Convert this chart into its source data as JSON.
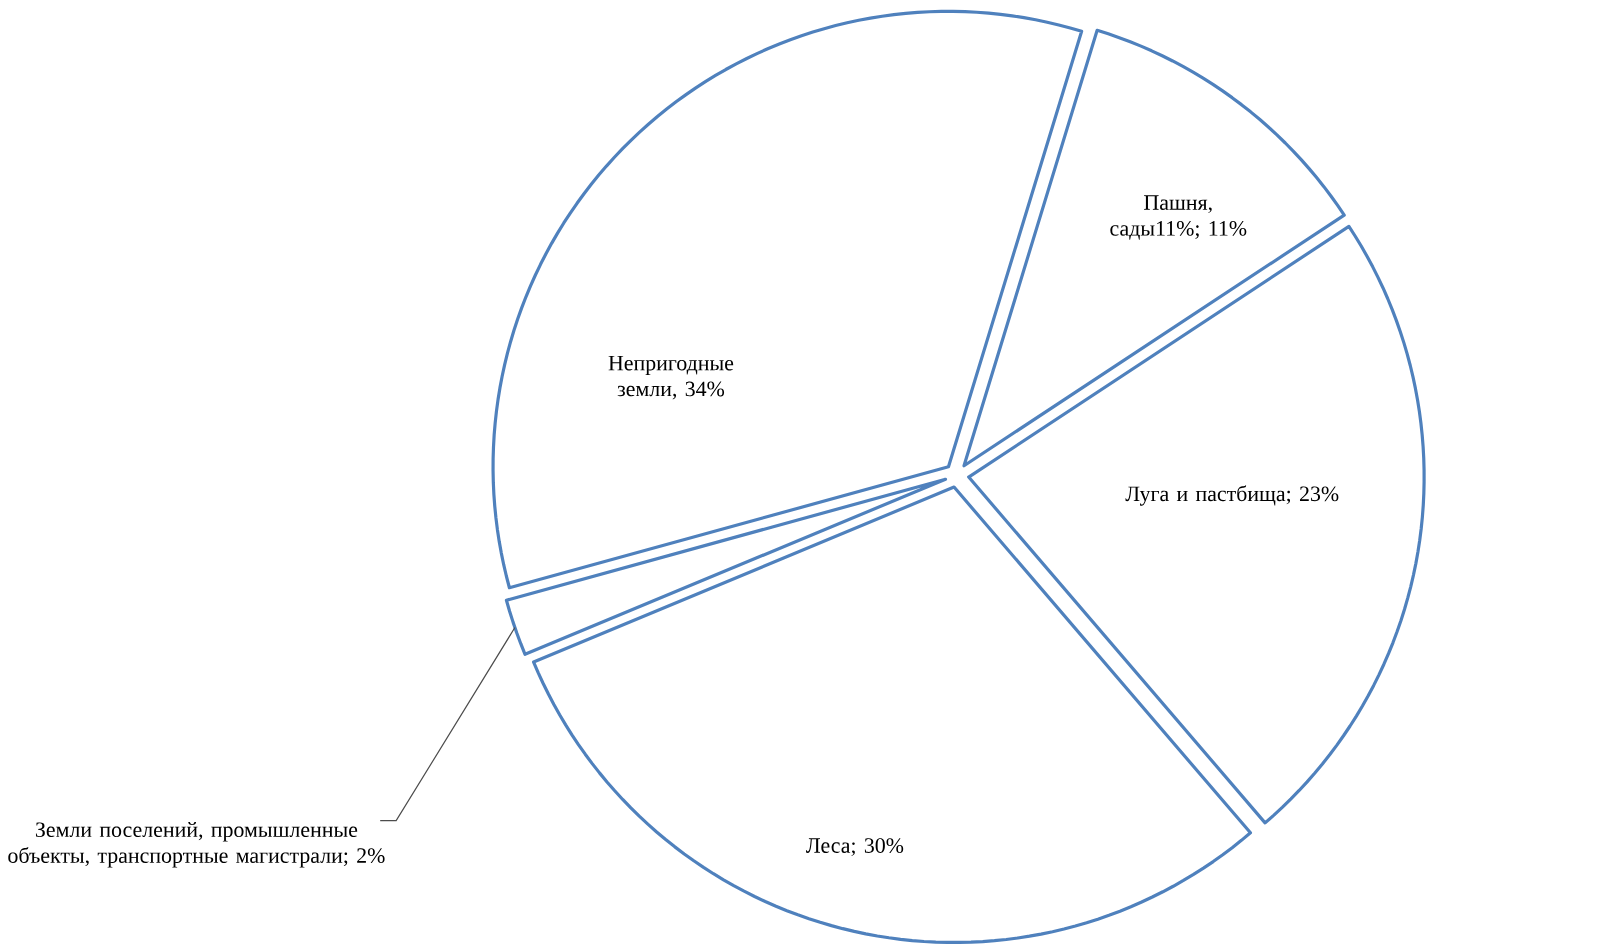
{
  "chart_data": {
    "type": "pie",
    "categories": [
      "Пашня, сады11%; 11%",
      "Луга и пастбища; 23%",
      "Леса; 30%",
      "Земли поселений, промышленные объекты, транспортные магистрали; 2%",
      "Непригодные земли, 34%"
    ],
    "values": [
      11,
      23,
      30,
      2,
      34
    ],
    "colors": [
      "#ffffff",
      "#ffffff",
      "#ffffff",
      "#ffffff",
      "#ffffff"
    ]
  }
}
